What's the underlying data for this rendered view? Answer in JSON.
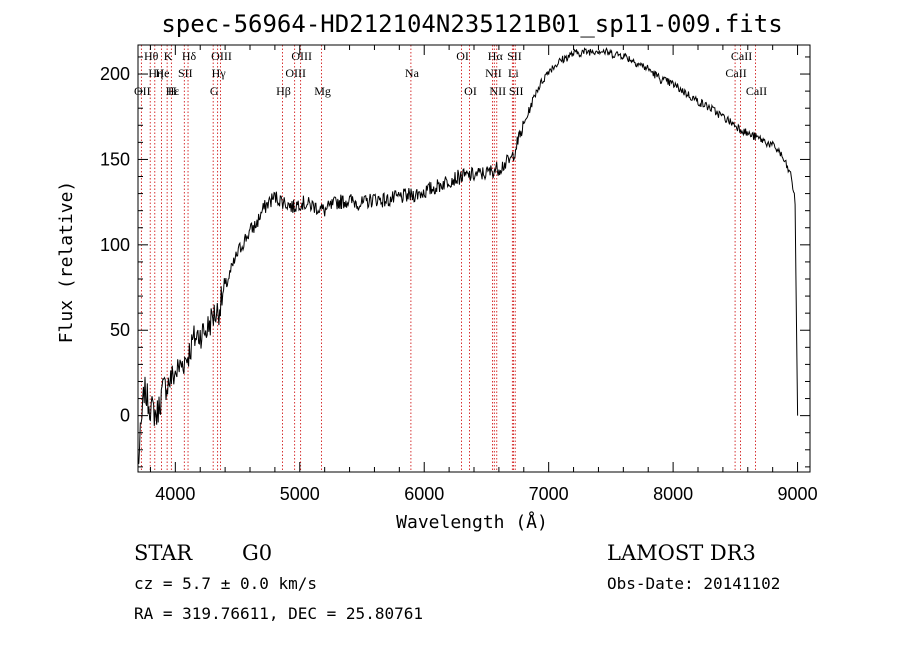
{
  "chart_data": {
    "type": "line",
    "title": "spec-56964-HD212104N235121B01_sp11-009.fits",
    "xlabel": "Wavelength (Å)",
    "ylabel": "Flux (relative)",
    "xlim": [
      3700,
      9100
    ],
    "ylim": [
      -33,
      217
    ],
    "xticks": [
      "4000",
      "5000",
      "6000",
      "7000",
      "8000",
      "9000"
    ],
    "xtick_values": [
      4000,
      5000,
      6000,
      7000,
      8000,
      9000
    ],
    "yticks": [
      "0",
      "50",
      "100",
      "150",
      "200"
    ],
    "ytick_values": [
      0,
      50,
      100,
      150,
      200
    ],
    "series": [
      {
        "name": "flux",
        "x": [
          3700,
          3750,
          3800,
          3850,
          3900,
          3950,
          4000,
          4050,
          4100,
          4150,
          4200,
          4250,
          4300,
          4350,
          4400,
          4450,
          4500,
          4550,
          4600,
          4650,
          4700,
          4750,
          4800,
          4850,
          4900,
          4950,
          5000,
          5100,
          5200,
          5300,
          5400,
          5500,
          5600,
          5700,
          5800,
          5900,
          6000,
          6100,
          6200,
          6300,
          6400,
          6500,
          6600,
          6700,
          6800,
          6900,
          7000,
          7100,
          7200,
          7300,
          7400,
          7500,
          7600,
          7700,
          7800,
          7900,
          8000,
          8100,
          8200,
          8300,
          8400,
          8500,
          8600,
          8700,
          8800,
          8850,
          8900,
          8950,
          8980,
          9000
        ],
        "y": [
          -30,
          15,
          5,
          0,
          15,
          20,
          25,
          30,
          35,
          45,
          48,
          50,
          58,
          62,
          75,
          85,
          95,
          102,
          108,
          112,
          120,
          125,
          128,
          126,
          124,
          122,
          125,
          123,
          120,
          125,
          126,
          124,
          127,
          126,
          128,
          129,
          131,
          134,
          138,
          140,
          141,
          142,
          145,
          150,
          170,
          190,
          202,
          208,
          212,
          213,
          214,
          212,
          211,
          207,
          203,
          197,
          194,
          189,
          184,
          180,
          175,
          170,
          165,
          162,
          158,
          155,
          148,
          140,
          125,
          0
        ]
      }
    ],
    "lines_top": [
      {
        "label": "Hθ",
        "wl": 3798,
        "row": 0
      },
      {
        "label": "K",
        "wl": 3934,
        "row": 0
      },
      {
        "label": "Hδ",
        "wl": 4102,
        "row": 0
      },
      {
        "label": "OIII",
        "wl": 4363,
        "row": 0
      },
      {
        "label": "OIII",
        "wl": 5007,
        "row": 0
      },
      {
        "label": "OI",
        "wl": 6300,
        "row": 0
      },
      {
        "label": "Hα",
        "wl": 6563,
        "row": 0
      },
      {
        "label": "SII",
        "wl": 6717,
        "row": 0
      },
      {
        "label": "CaII",
        "wl": 8542,
        "row": 0
      },
      {
        "label": "Hη",
        "wl": 3835,
        "row": 1
      },
      {
        "label": "He",
        "wl": 3889,
        "row": 1
      },
      {
        "label": "SII",
        "wl": 4072,
        "row": 1
      },
      {
        "label": "Hγ",
        "wl": 4340,
        "row": 1
      },
      {
        "label": "OIII",
        "wl": 4959,
        "row": 1
      },
      {
        "label": "Na",
        "wl": 5893,
        "row": 1
      },
      {
        "label": "NII",
        "wl": 6548,
        "row": 1
      },
      {
        "label": "Li",
        "wl": 6708,
        "row": 1
      },
      {
        "label": "CaII",
        "wl": 8498,
        "row": 1
      },
      {
        "label": "OII",
        "wl": 3727,
        "row": 2
      },
      {
        "label": "Hε",
        "wl": 3970,
        "row": 2
      },
      {
        "label": "H",
        "wl": 3968,
        "row": 2
      },
      {
        "label": "G",
        "wl": 4304,
        "row": 2
      },
      {
        "label": "Hβ",
        "wl": 4861,
        "row": 2
      },
      {
        "label": "Mg",
        "wl": 5175,
        "row": 2
      },
      {
        "label": "OI",
        "wl": 6364,
        "row": 2
      },
      {
        "label": "NII",
        "wl": 6583,
        "row": 2
      },
      {
        "label": "SII",
        "wl": 6731,
        "row": 2
      },
      {
        "label": "CaII",
        "wl": 8662,
        "row": 2
      }
    ],
    "vlines": [
      3727,
      3798,
      3835,
      3889,
      3934,
      3968,
      4072,
      4102,
      4304,
      4340,
      4363,
      4861,
      4959,
      5007,
      5175,
      5893,
      6300,
      6364,
      6548,
      6563,
      6583,
      6708,
      6717,
      6731,
      8498,
      8542,
      8662
    ]
  },
  "info": {
    "type": "STAR",
    "subclass": "G0",
    "survey": "LAMOST DR3",
    "cz": "cz = 5.7 ± 0.0 km/s",
    "obs_date": "Obs-Date: 20141102",
    "radec": "RA = 319.76611, DEC =  25.80761"
  },
  "colors": {
    "line": "#000000",
    "marker": "#cc0000",
    "axis": "#000000"
  }
}
